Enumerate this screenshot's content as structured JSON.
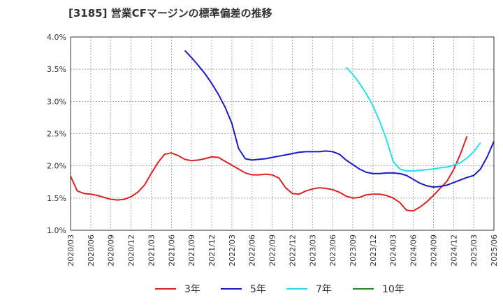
{
  "chart_data": {
    "type": "line",
    "title": "[3185]  営業CFマージンの標準偏差の推移",
    "xlabel": "",
    "ylabel": "",
    "ylim": [
      1.0,
      4.0
    ],
    "yticks": [
      "1.0%",
      "1.5%",
      "2.0%",
      "2.5%",
      "3.0%",
      "3.5%",
      "4.0%"
    ],
    "xticks": [
      "2020/03",
      "2020/06",
      "2020/09",
      "2020/12",
      "2021/03",
      "2021/06",
      "2021/09",
      "2021/12",
      "2022/03",
      "2022/06",
      "2022/09",
      "2022/12",
      "2023/03",
      "2023/06",
      "2023/09",
      "2023/12",
      "2024/03",
      "2024/06",
      "2024/09",
      "2024/12",
      "2025/03",
      "2025/06"
    ],
    "grid": true,
    "legend_position": "bottom",
    "series": [
      {
        "name": "3年",
        "color": "#e02020",
        "start": "2020/03",
        "values": [
          1.84,
          1.61,
          1.57,
          1.56,
          1.54,
          1.51,
          1.48,
          1.47,
          1.48,
          1.52,
          1.59,
          1.7,
          1.88,
          2.05,
          2.18,
          2.2,
          2.16,
          2.1,
          2.08,
          2.09,
          2.11,
          2.14,
          2.13,
          2.07,
          2.01,
          1.95,
          1.89,
          1.86,
          1.86,
          1.87,
          1.86,
          1.81,
          1.66,
          1.57,
          1.56,
          1.61,
          1.64,
          1.66,
          1.65,
          1.63,
          1.59,
          1.53,
          1.5,
          1.51,
          1.55,
          1.56,
          1.56,
          1.54,
          1.5,
          1.43,
          1.31,
          1.3,
          1.36,
          1.44,
          1.54,
          1.65,
          1.76,
          1.94,
          2.18,
          2.46
        ]
      },
      {
        "name": "5年",
        "color": "#1a1ac8",
        "start": "2021/08",
        "values": [
          3.79,
          3.68,
          3.56,
          3.43,
          3.28,
          3.11,
          2.91,
          2.66,
          2.27,
          2.11,
          2.09,
          2.1,
          2.11,
          2.13,
          2.15,
          2.17,
          2.19,
          2.21,
          2.22,
          2.22,
          2.22,
          2.23,
          2.22,
          2.18,
          2.09,
          2.02,
          1.95,
          1.9,
          1.88,
          1.88,
          1.89,
          1.89,
          1.88,
          1.85,
          1.79,
          1.73,
          1.69,
          1.67,
          1.68,
          1.7,
          1.74,
          1.78,
          1.82,
          1.85,
          1.95,
          2.14,
          2.38
        ]
      },
      {
        "name": "7年",
        "color": "#22e0f0",
        "start": "2023/08",
        "values": [
          3.53,
          3.42,
          3.28,
          3.12,
          2.93,
          2.69,
          2.41,
          2.07,
          1.95,
          1.92,
          1.92,
          1.93,
          1.94,
          1.95,
          1.97,
          1.98,
          2.01,
          2.05,
          2.12,
          2.22,
          2.36
        ]
      },
      {
        "name": "10年",
        "color": "#228b22",
        "start": "2025/03",
        "values": []
      }
    ]
  }
}
